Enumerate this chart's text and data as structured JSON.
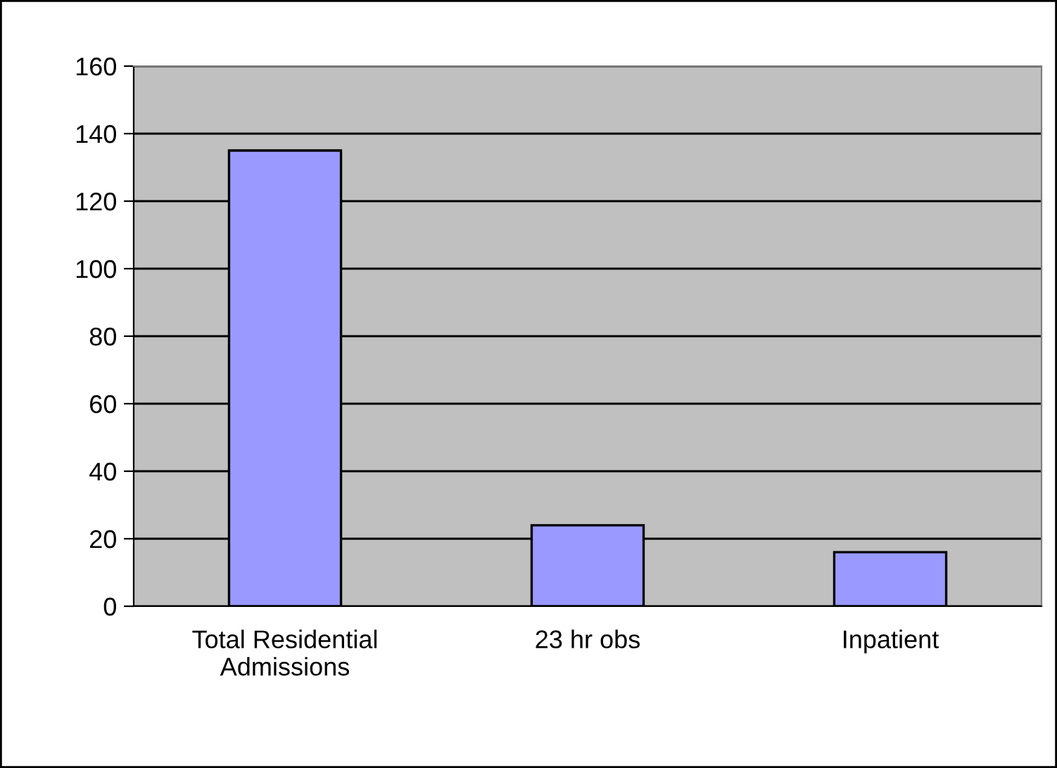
{
  "chart_data": {
    "type": "bar",
    "categories": [
      "Total Residential\nAdmissions",
      "23 hr obs",
      "Inpatient"
    ],
    "values": [
      135,
      24,
      16
    ],
    "color": "#9999ff",
    "ylim": [
      0,
      160
    ],
    "yticks": [
      0,
      20,
      40,
      60,
      80,
      100,
      120,
      140,
      160
    ],
    "grid": "y"
  }
}
